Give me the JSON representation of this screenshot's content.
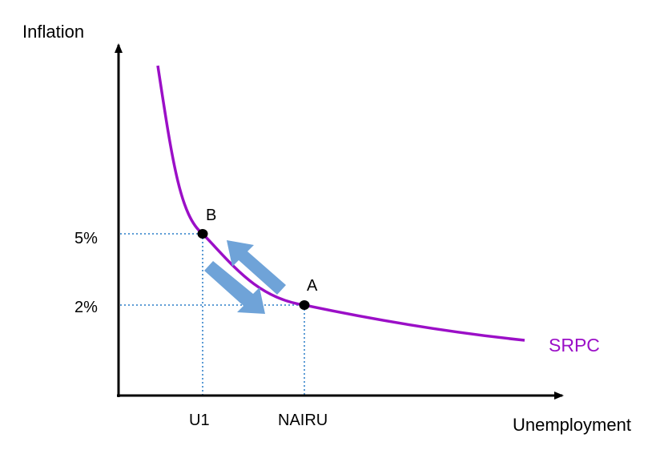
{
  "axes": {
    "y_label": "Inflation",
    "x_label": "Unemployment",
    "y_ticks": [
      "5%",
      "2%"
    ],
    "x_ticks": [
      "U1",
      "NAIRU"
    ]
  },
  "curve": {
    "label": "SRPC",
    "color": "#9B0FC7"
  },
  "points": [
    {
      "label": "B",
      "x_tick": "U1",
      "y_tick": "5%"
    },
    {
      "label": "A",
      "x_tick": "NAIRU",
      "y_tick": "2%"
    }
  ],
  "colors": {
    "guide_lines": "#5B9BD5",
    "arrows": "#6FA3D8",
    "axes": "#000000"
  },
  "arrows": [
    {
      "direction": "from A toward B"
    },
    {
      "direction": "from B toward A"
    }
  ]
}
